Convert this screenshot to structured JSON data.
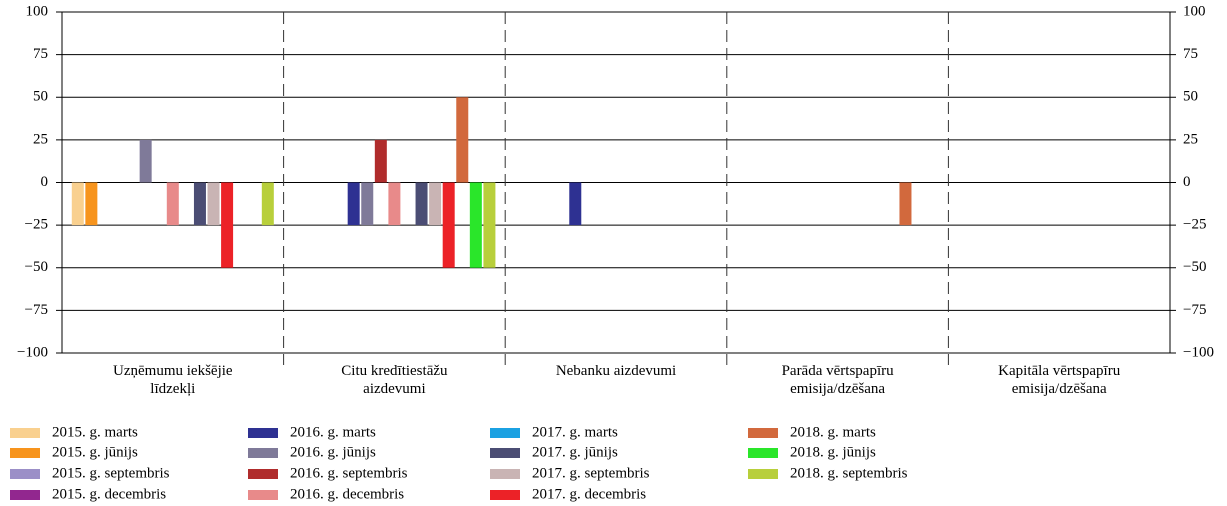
{
  "chart_data": {
    "type": "bar",
    "categories": [
      [
        "Uzņēmumu iekšējie",
        "līdzekļi"
      ],
      [
        "Citu kredītiestāžu",
        "aizdevumi"
      ],
      [
        "Nebanku aizdevumi"
      ],
      [
        "Parāda vērtspapīru",
        "emisija/dzēšana"
      ],
      [
        "Kapitāla vērtspapīru",
        "emisija/dzēšana"
      ]
    ],
    "series": [
      {
        "name": "2015. g. marts",
        "color": "#f9d08f",
        "values": [
          -25,
          null,
          null,
          null,
          null
        ]
      },
      {
        "name": "2015. g. jūnijs",
        "color": "#f7941d",
        "values": [
          -25,
          null,
          null,
          null,
          null
        ]
      },
      {
        "name": "2015. g. septembris",
        "color": "#9b8fc7",
        "values": [
          null,
          null,
          null,
          null,
          null
        ]
      },
      {
        "name": "2015. g. decembris",
        "color": "#92278f",
        "values": [
          null,
          null,
          null,
          null,
          null
        ]
      },
      {
        "name": "2016. g. marts",
        "color": "#2e3192",
        "values": [
          null,
          -25,
          -25,
          null,
          null
        ]
      },
      {
        "name": "2016. g. jūnijs",
        "color": "#7f7a99",
        "values": [
          25,
          -25,
          null,
          null,
          null
        ]
      },
      {
        "name": "2016. g. septembris",
        "color": "#b02c2c",
        "values": [
          null,
          25,
          null,
          null,
          null
        ]
      },
      {
        "name": "2016. g. decembris",
        "color": "#e88a8a",
        "values": [
          -25,
          -25,
          null,
          null,
          null
        ]
      },
      {
        "name": "2017. g. marts",
        "color": "#1ba1e2",
        "values": [
          null,
          null,
          null,
          null,
          null
        ]
      },
      {
        "name": "2017. g. jūnijs",
        "color": "#4b4d74",
        "values": [
          -25,
          -25,
          null,
          null,
          null
        ]
      },
      {
        "name": "2017. g. septembris",
        "color": "#c9b4b4",
        "values": [
          -25,
          -25,
          null,
          null,
          null
        ]
      },
      {
        "name": "2017. g. decembris",
        "color": "#ec2227",
        "values": [
          -50,
          -50,
          null,
          null,
          null
        ]
      },
      {
        "name": "2018. g. marts",
        "color": "#d2693d",
        "values": [
          null,
          50,
          null,
          -25,
          null
        ]
      },
      {
        "name": "2018. g. jūnijs",
        "color": "#2ae62a",
        "values": [
          null,
          -50,
          null,
          null,
          null
        ]
      },
      {
        "name": "2018. g. septembris",
        "color": "#b8cf3b",
        "values": [
          -25,
          -50,
          null,
          null,
          null
        ]
      }
    ],
    "ylim": [
      -100,
      100
    ],
    "yticks": [
      {
        "value": -100,
        "label": "−100"
      },
      {
        "value": -75,
        "label": "−75"
      },
      {
        "value": -50,
        "label": "−50"
      },
      {
        "value": -25,
        "label": "−25"
      },
      0,
      25,
      50,
      75,
      100
    ],
    "grid": true
  }
}
